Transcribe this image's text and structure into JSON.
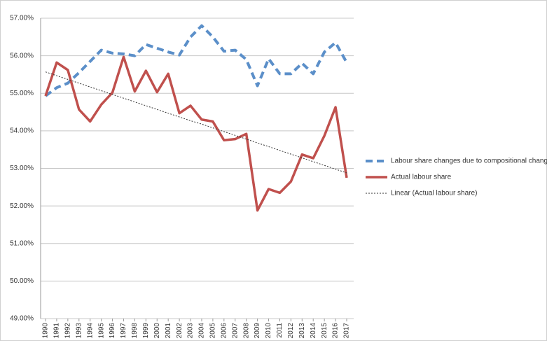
{
  "chart_data": {
    "type": "line",
    "categories": [
      "1990",
      "1991",
      "1992",
      "1993",
      "1994",
      "1995",
      "1996",
      "1997",
      "1998",
      "1999",
      "2000",
      "2001",
      "2002",
      "2003",
      "2004",
      "2005",
      "2006",
      "2007",
      "2008",
      "2009",
      "2010",
      "2011",
      "2012",
      "2013",
      "2014",
      "2015",
      "2016",
      "2017"
    ],
    "series": [
      {
        "name": "Labour share changes due to compositional change",
        "color": "#5b8fc9",
        "line_style": "dashed",
        "values": [
          54.93,
          55.15,
          55.27,
          55.55,
          55.85,
          56.15,
          56.07,
          56.05,
          56.0,
          56.3,
          56.2,
          56.1,
          56.02,
          56.5,
          56.8,
          56.5,
          56.12,
          56.15,
          55.9,
          55.2,
          55.92,
          55.52,
          55.52,
          55.8,
          55.52,
          56.1,
          56.35,
          55.82
        ]
      },
      {
        "name": "Actual labour share",
        "color": "#c0504d",
        "line_style": "solid",
        "values": [
          54.93,
          55.82,
          55.62,
          54.57,
          54.25,
          54.7,
          55.02,
          55.97,
          55.05,
          55.6,
          55.03,
          55.52,
          54.47,
          54.67,
          54.3,
          54.25,
          53.75,
          53.78,
          53.92,
          51.88,
          52.45,
          52.35,
          52.65,
          53.37,
          53.27,
          53.87,
          54.63,
          52.75
        ]
      },
      {
        "name": "Linear (Actual labour share)",
        "color": "#333333",
        "line_style": "dotted",
        "values": [
          55.57,
          55.47,
          55.37,
          55.27,
          55.17,
          55.07,
          54.97,
          54.87,
          54.77,
          54.67,
          54.57,
          54.47,
          54.37,
          54.27,
          54.18,
          54.08,
          53.98,
          53.88,
          53.78,
          53.68,
          53.58,
          53.48,
          53.38,
          53.28,
          53.18,
          53.08,
          52.98,
          52.88
        ]
      }
    ],
    "ylim": [
      49,
      57
    ],
    "yticks": [
      {
        "value": 49,
        "label": "49.00%"
      },
      {
        "value": 50,
        "label": "50.00%"
      },
      {
        "value": 51,
        "label": "51.00%"
      },
      {
        "value": 52,
        "label": "52.00%"
      },
      {
        "value": 53,
        "label": "53.00%"
      },
      {
        "value": 54,
        "label": "54.00%"
      },
      {
        "value": 55,
        "label": "55.00%"
      },
      {
        "value": 56,
        "label": "56.00%"
      },
      {
        "value": 57,
        "label": "57.00%"
      }
    ],
    "grid": true,
    "legend": "right"
  }
}
